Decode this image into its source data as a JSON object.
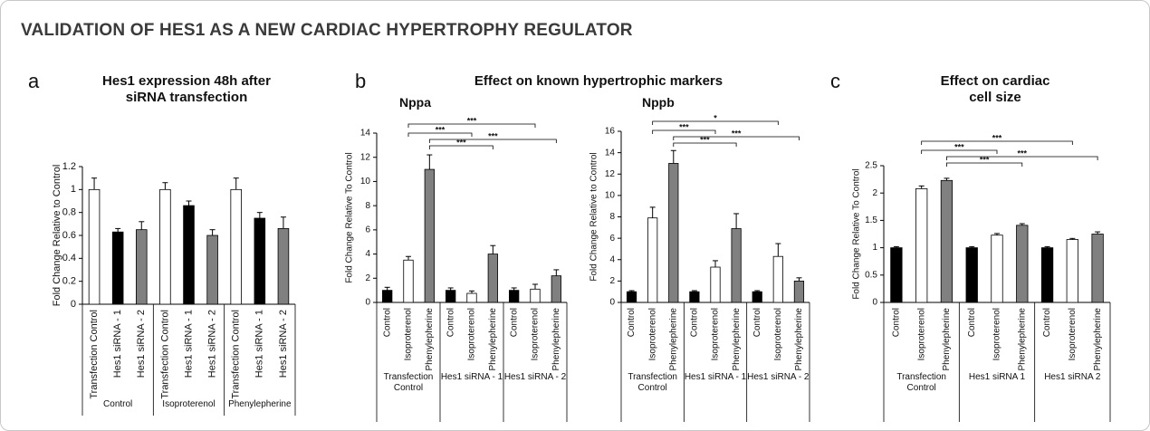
{
  "header": {
    "title": "VALIDATION OF HES1 AS A NEW CARDIAC HYPERTROPHY REGULATOR"
  },
  "panels": [
    {
      "letter": "a",
      "title": "Hes1 expression 48h after siRNA transfection"
    },
    {
      "letter": "b",
      "title": "Effect on known hypertrophic markers"
    },
    {
      "letter": "c",
      "title": "Effect on cardiac cell size"
    }
  ],
  "chart_data": [
    {
      "type": "bar",
      "ylabel": "Fold Change Relative to Control",
      "categories": [
        "Transfection Control",
        "Hes1 siRNA - 1",
        "Hes1 siRNA - 2",
        "Transfection Control",
        "Hes1 siRNA - 1",
        "Hes1 siRNA - 2",
        "Transfection Control",
        "Hes1 siRNA - 1",
        "Hes1 siRNA - 2"
      ],
      "groups": [
        "Control",
        "Isoproterenol",
        "Phenylepherine"
      ],
      "values": [
        1,
        0.63,
        0.65,
        1,
        0.86,
        0.6,
        1,
        0.75,
        0.66
      ],
      "errors": [
        0.1,
        0.03,
        0.07,
        0.06,
        0.04,
        0.05,
        0.1,
        0.05,
        0.1
      ],
      "colors": [
        "#ffffff",
        "#000000",
        "#808080",
        "#ffffff",
        "#000000",
        "#808080",
        "#ffffff",
        "#000000",
        "#808080"
      ],
      "ylim": [
        0,
        1.2
      ],
      "yticks": [
        0,
        0.2,
        0.4,
        0.6,
        0.8,
        1,
        1.2
      ],
      "brackets": []
    },
    {
      "type": "bar",
      "title": "Nppa",
      "ylabel": "Fold Change Relative To Control",
      "categories": [
        "Control",
        "Isoproterenol",
        "Phenylepherine",
        "Control",
        "Isoproterenol",
        "Phenylepherine",
        "Control",
        "Isoproterenol",
        "Phenylepherine"
      ],
      "groups": [
        "Transfection Control",
        "Hes1 siRNA - 1",
        "Hes1 siRNA - 2"
      ],
      "values": [
        1,
        3.5,
        11,
        1,
        0.75,
        4,
        1,
        1.1,
        2.2
      ],
      "errors": [
        0.25,
        0.3,
        1.2,
        0.2,
        0.2,
        0.7,
        0.2,
        0.4,
        0.5
      ],
      "colors": [
        "#000000",
        "#ffffff",
        "#808080",
        "#000000",
        "#ffffff",
        "#808080",
        "#000000",
        "#ffffff",
        "#808080"
      ],
      "ylim": [
        0,
        14
      ],
      "yticks": [
        0,
        2,
        4,
        6,
        8,
        10,
        12,
        14
      ],
      "brackets": [
        {
          "from": 1,
          "to": 7,
          "label": "***"
        },
        {
          "from": 1,
          "to": 4,
          "label": "***"
        },
        {
          "from": 2,
          "to": 8,
          "label": "***"
        },
        {
          "from": 2,
          "to": 5,
          "label": "***"
        }
      ]
    },
    {
      "type": "bar",
      "title": "Nppb",
      "ylabel": "Fold Change Relative to Control",
      "categories": [
        "Control",
        "Isoproterenol",
        "Phenylepherine",
        "Control",
        "Isoproterenol",
        "Phenylepherine",
        "Control",
        "Isoproterenol",
        "Phenylepherine"
      ],
      "groups": [
        "Transfection Control",
        "Hes1 siRNA - 1",
        "Hes1 siRNA - 2"
      ],
      "values": [
        1,
        7.9,
        13,
        1,
        3.3,
        6.9,
        1,
        4.3,
        2
      ],
      "errors": [
        0.1,
        1,
        1.2,
        0.1,
        0.6,
        1.4,
        0.1,
        1.2,
        0.3
      ],
      "colors": [
        "#000000",
        "#ffffff",
        "#808080",
        "#000000",
        "#ffffff",
        "#808080",
        "#000000",
        "#ffffff",
        "#808080"
      ],
      "ylim": [
        0,
        16
      ],
      "yticks": [
        0,
        2,
        4,
        6,
        8,
        10,
        12,
        14,
        16
      ],
      "brackets": [
        {
          "from": 1,
          "to": 7,
          "label": "*"
        },
        {
          "from": 1,
          "to": 4,
          "label": "***"
        },
        {
          "from": 2,
          "to": 8,
          "label": "***"
        },
        {
          "from": 2,
          "to": 5,
          "label": "***"
        }
      ]
    },
    {
      "type": "bar",
      "ylabel": "Fold Change Relative To Control",
      "categories": [
        "Control",
        "Isoproterenol",
        "Phenylepherine",
        "Control",
        "Isoproterenol",
        "Phenylepherine",
        "Control",
        "Isoproterenol",
        "Phenylepherine"
      ],
      "groups": [
        "Transfection Control",
        "Hes1 siRNA 1",
        "Hes1 siRNA 2"
      ],
      "values": [
        1,
        2.08,
        2.23,
        1,
        1.23,
        1.41,
        1,
        1.15,
        1.25
      ],
      "errors": [
        0.02,
        0.05,
        0.04,
        0.02,
        0.03,
        0.03,
        0.02,
        0.02,
        0.04
      ],
      "colors": [
        "#000000",
        "#ffffff",
        "#808080",
        "#000000",
        "#ffffff",
        "#808080",
        "#000000",
        "#ffffff",
        "#808080"
      ],
      "ylim": [
        0,
        2.5
      ],
      "yticks": [
        0,
        0.5,
        1,
        1.5,
        2,
        2.5
      ],
      "brackets": [
        {
          "from": 1,
          "to": 7,
          "label": "***"
        },
        {
          "from": 1,
          "to": 4,
          "label": "***"
        },
        {
          "from": 2,
          "to": 8,
          "label": "***"
        },
        {
          "from": 2,
          "to": 5,
          "label": "***"
        }
      ]
    }
  ]
}
